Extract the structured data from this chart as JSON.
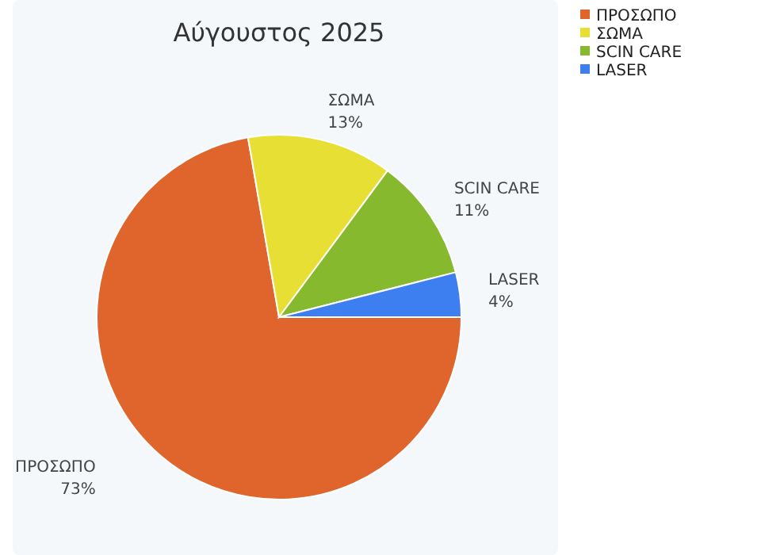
{
  "chart_data": {
    "type": "pie",
    "title": "Αύγουστος 2025",
    "categories": [
      "ΠΡΟΣΩΠΟ",
      "ΣΩΜΑ",
      "SCIN CARE",
      "LASER"
    ],
    "values": [
      73,
      13,
      11,
      4
    ],
    "value_labels": [
      "73%",
      "13%",
      "11%",
      "4%"
    ],
    "colors": [
      "#e0652d",
      "#e8df35",
      "#86b92e",
      "#3d7ff0"
    ],
    "legend": "top right"
  }
}
